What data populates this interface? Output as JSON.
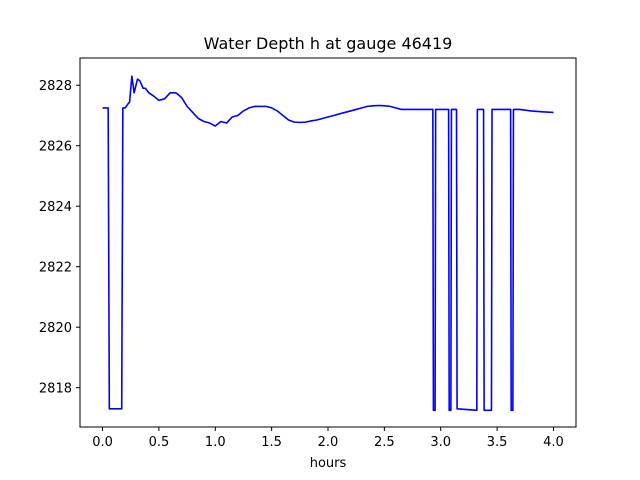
{
  "chart_data": {
    "type": "line",
    "title": "Water Depth h at gauge 46419",
    "xlabel": "hours",
    "ylabel": "",
    "xlim": [
      -0.2,
      4.2
    ],
    "ylim": [
      2816.7,
      2828.9
    ],
    "xticks": [
      0.0,
      0.5,
      1.0,
      1.5,
      2.0,
      2.5,
      3.0,
      3.5,
      4.0
    ],
    "xtick_labels": [
      "0.0",
      "0.5",
      "1.0",
      "1.5",
      "2.0",
      "2.5",
      "3.0",
      "3.5",
      "4.0"
    ],
    "yticks": [
      2818,
      2820,
      2822,
      2824,
      2826,
      2828
    ],
    "ytick_labels": [
      "2818",
      "2820",
      "2822",
      "2824",
      "2826",
      "2828"
    ],
    "grid": false,
    "series": [
      {
        "color": "#0000ff",
        "x": [
          0.0,
          0.05,
          0.06,
          0.17,
          0.18,
          0.2,
          0.24,
          0.26,
          0.28,
          0.31,
          0.33,
          0.36,
          0.38,
          0.41,
          0.45,
          0.5,
          0.55,
          0.6,
          0.65,
          0.7,
          0.75,
          0.8,
          0.85,
          0.9,
          0.95,
          1.0,
          1.05,
          1.1,
          1.15,
          1.2,
          1.25,
          1.3,
          1.35,
          1.4,
          1.45,
          1.5,
          1.55,
          1.6,
          1.65,
          1.7,
          1.75,
          1.8,
          1.85,
          1.9,
          1.95,
          2.0,
          2.05,
          2.1,
          2.15,
          2.2,
          2.25,
          2.3,
          2.35,
          2.4,
          2.45,
          2.5,
          2.55,
          2.6,
          2.65,
          2.7,
          2.75,
          2.8,
          2.85,
          2.9,
          2.93,
          2.935,
          2.95,
          2.955,
          3.07,
          3.075,
          3.09,
          3.095,
          3.14,
          3.145,
          3.32,
          3.325,
          3.38,
          3.385,
          3.45,
          3.455,
          3.62,
          3.625,
          3.64,
          3.645,
          3.7,
          3.8,
          3.9,
          4.0
        ],
        "y": [
          2827.25,
          2827.25,
          2817.3,
          2817.3,
          2827.25,
          2827.25,
          2827.45,
          2828.3,
          2827.75,
          2828.2,
          2828.15,
          2827.9,
          2827.9,
          2827.75,
          2827.65,
          2827.5,
          2827.55,
          2827.75,
          2827.75,
          2827.6,
          2827.3,
          2827.1,
          2826.9,
          2826.8,
          2826.75,
          2826.65,
          2826.8,
          2826.75,
          2826.95,
          2827.0,
          2827.15,
          2827.25,
          2827.3,
          2827.3,
          2827.3,
          2827.25,
          2827.15,
          2827.0,
          2826.85,
          2826.78,
          2826.77,
          2826.78,
          2826.82,
          2826.85,
          2826.9,
          2826.95,
          2827.0,
          2827.05,
          2827.1,
          2827.15,
          2827.2,
          2827.25,
          2827.3,
          2827.32,
          2827.33,
          2827.32,
          2827.3,
          2827.25,
          2827.2,
          2827.2,
          2827.2,
          2827.2,
          2827.2,
          2827.2,
          2827.2,
          2817.25,
          2817.25,
          2827.2,
          2827.2,
          2817.25,
          2817.25,
          2827.2,
          2827.2,
          2817.3,
          2817.25,
          2827.2,
          2827.2,
          2817.25,
          2817.25,
          2827.2,
          2827.2,
          2817.25,
          2817.25,
          2827.2,
          2827.2,
          2827.15,
          2827.12,
          2827.1
        ]
      }
    ]
  }
}
